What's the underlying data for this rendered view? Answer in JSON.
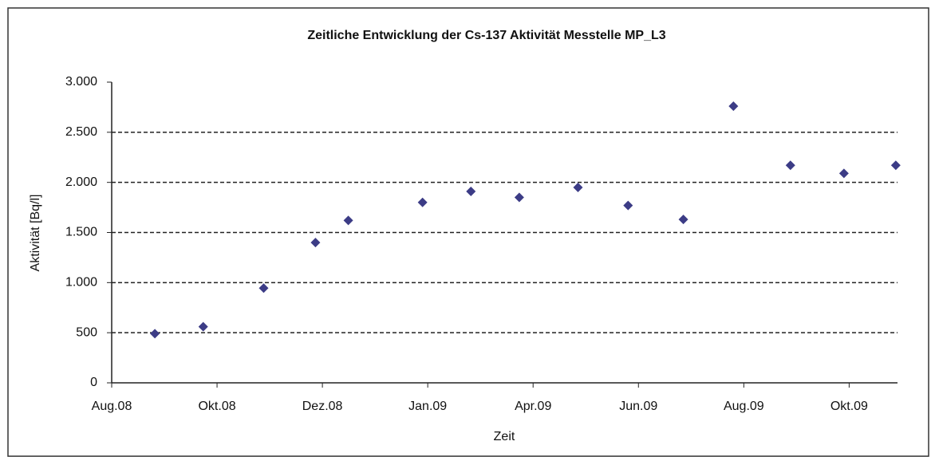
{
  "chart_data": {
    "type": "scatter",
    "title": "Zeitliche Entwicklung der Cs-137 Aktivität Messtelle MP_L3",
    "x_label": "Zeit",
    "y_label": "Aktivität [Bq/l]",
    "series": [
      {
        "name": "Cs-137",
        "color": "#3c3c86",
        "x": [
          39686,
          39714,
          39749,
          39779,
          39798,
          39841,
          39869,
          39897,
          39931,
          39960,
          39992,
          40021,
          40054,
          40085,
          40115
        ],
        "values": [
          490,
          560,
          945,
          1400,
          1620,
          1800,
          1910,
          1850,
          1950,
          1770,
          1630,
          2760,
          2170,
          2090,
          2170
        ]
      }
    ],
    "xlim": [
      39661,
      40116
    ],
    "xticks": [
      {
        "value": 39661,
        "label": "Aug.08"
      },
      {
        "value": 39722,
        "label": "Okt.08"
      },
      {
        "value": 39783,
        "label": "Dez.08"
      },
      {
        "value": 39844,
        "label": "Jan.09"
      },
      {
        "value": 39905,
        "label": "Apr.09"
      },
      {
        "value": 39966,
        "label": "Jun.09"
      },
      {
        "value": 40027,
        "label": "Aug.09"
      },
      {
        "value": 40088,
        "label": "Okt.09"
      }
    ],
    "ylim": [
      0,
      3000
    ],
    "yticks": [
      0,
      500,
      {
        "value": 1000,
        "label": "1.000"
      },
      {
        "value": 1500,
        "label": "1.500"
      },
      {
        "value": 2000,
        "label": "2.000"
      },
      {
        "value": 2500,
        "label": "2.500"
      },
      {
        "value": 3000,
        "label": "3.000"
      }
    ],
    "grid": true
  }
}
